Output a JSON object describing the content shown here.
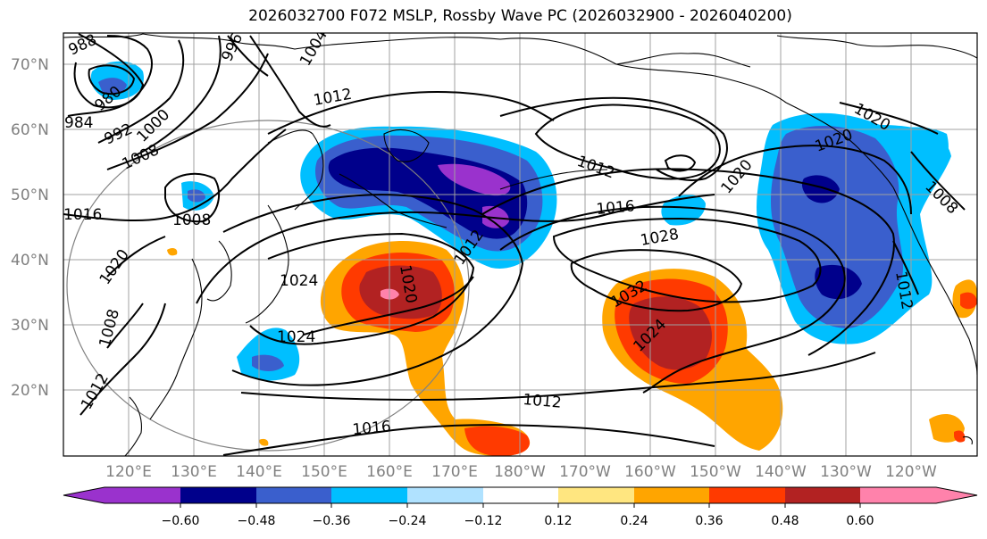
{
  "title": "2026032700 F072 MSLP, Rossby Wave PC (2026032900 - 2026040200)",
  "lat_labels": [
    "70°N",
    "60°N",
    "50°N",
    "40°N",
    "30°N",
    "20°N"
  ],
  "lon_labels": [
    "120°E",
    "130°E",
    "140°E",
    "150°E",
    "160°E",
    "170°E",
    "180°W",
    "170°W",
    "160°W",
    "150°W",
    "140°W",
    "130°W",
    "120°W"
  ],
  "isobar_labels": [
    "988",
    "980",
    "984",
    "992",
    "1000",
    "1008",
    "1008",
    "1016",
    "1004",
    "996",
    "1012",
    "1012",
    "1016",
    "1020",
    "1028",
    "1032",
    "1024",
    "1024",
    "1024",
    "1012",
    "1020",
    "1020",
    "1020",
    "1008",
    "1012",
    "1012",
    "1008",
    "1016",
    "1012",
    "1020"
  ],
  "colorbar": {
    "ticks": [
      "−0.60",
      "−0.48",
      "−0.36",
      "−0.24",
      "−0.12",
      "0.12",
      "0.24",
      "0.36",
      "0.48",
      "0.60"
    ],
    "colors": [
      "#9a32cd",
      "#00008b",
      "#3a5fcd",
      "#00bfff",
      "#b0e2ff",
      "#ffffff",
      "#ffe680",
      "#ffa500",
      "#ff3a00",
      "#b22222",
      "#ff82ab",
      "#ff82ab"
    ]
  },
  "shading_colors": {
    "neg_060": "#9a32cd",
    "neg_048": "#00008b",
    "neg_036": "#3a5fcd",
    "neg_024": "#00bfff",
    "pos_024": "#ffa500",
    "pos_036": "#ff3a00",
    "pos_048": "#b22222",
    "pos_060": "#ff82ab"
  }
}
